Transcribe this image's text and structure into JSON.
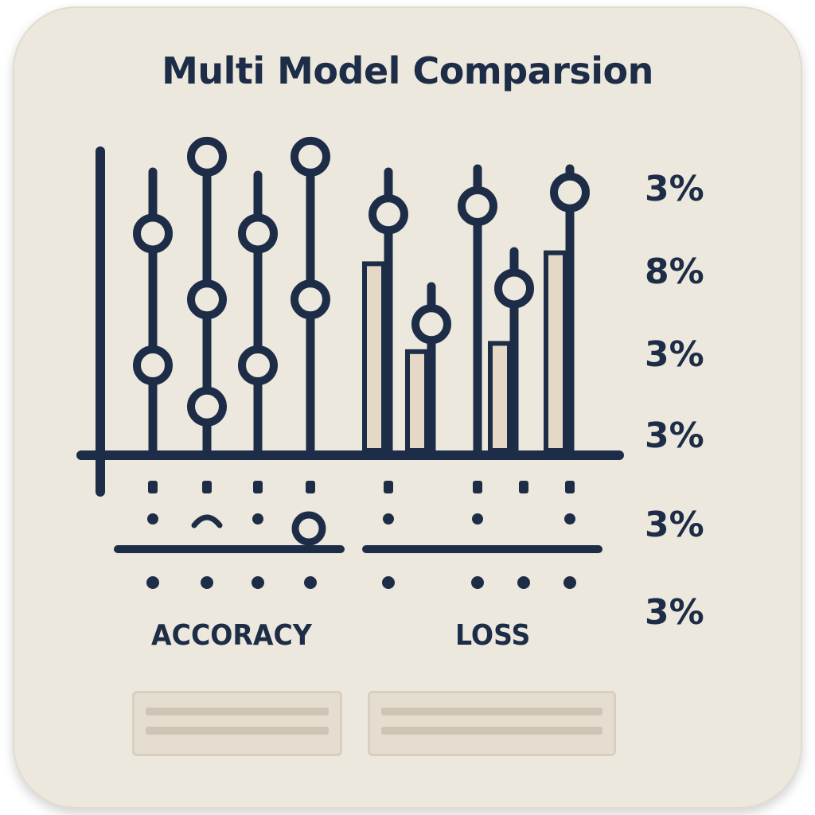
{
  "title": "Multi Model Comparsion",
  "percent_labels": [
    "3%",
    "8%",
    "3%",
    "3%",
    "3%",
    "3%"
  ],
  "colors": {
    "ink": "#1d2d47",
    "background": "#ede8dd",
    "bar_fill": "#e6d8c6",
    "legend": "#e4ddd0"
  },
  "chart_data": {
    "type": "scatter",
    "title": "Multi Model Comparsion",
    "groups": [
      {
        "name": "ACCORACY",
        "stems": [
          {
            "markers": [
              0.79,
              0.31
            ]
          },
          {
            "markers": [
              1.07,
              0.55,
              0.16
            ]
          },
          {
            "markers": [
              0.79,
              0.31
            ]
          },
          {
            "markers": [
              1.07,
              0.55
            ]
          }
        ]
      },
      {
        "name": "LOSS",
        "stems": [
          {
            "markers": [
              0.86
            ],
            "bar": 0.68
          },
          {
            "markers": [
              0.46
            ],
            "bar": 0.36
          },
          {
            "markers": [
              0.89
            ]
          },
          {
            "markers": [
              0.59
            ],
            "bar": 0.39
          },
          {
            "markers": [
              0.94
            ],
            "bar": 0.72
          }
        ]
      }
    ],
    "right_labels": [
      "3%",
      "8%",
      "3%",
      "3%",
      "3%",
      "3%"
    ]
  }
}
